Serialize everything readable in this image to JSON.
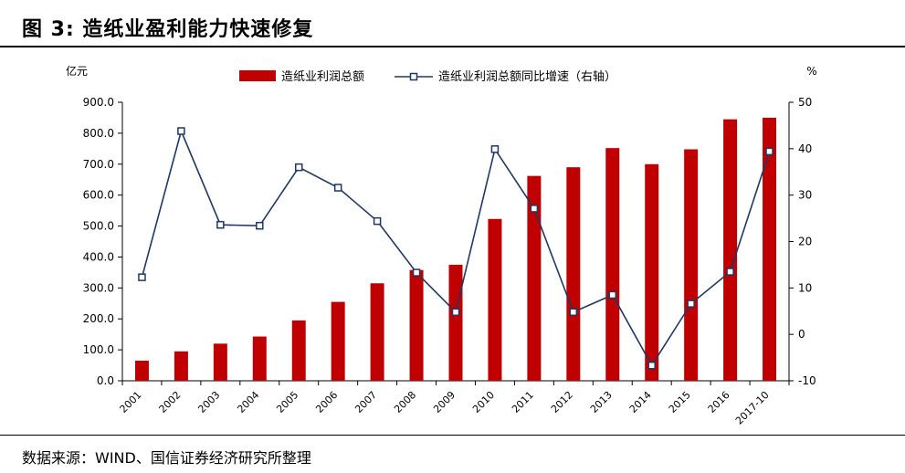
{
  "header": {
    "title": "图 3:  造纸业盈利能力快速修复"
  },
  "footer": {
    "source": "数据来源：WIND、国信证券经济研究所整理"
  },
  "chart_data": {
    "type": "bar+line",
    "categories": [
      "2001",
      "2002",
      "2003",
      "2004",
      "2005",
      "2006",
      "2007",
      "2008",
      "2009",
      "2010",
      "2011",
      "2012",
      "2013",
      "2014",
      "2015",
      "2016",
      "2017-10"
    ],
    "series": [
      {
        "name": "造纸业利润总额",
        "type": "bar",
        "axis": "left",
        "color": "#c00000",
        "values": [
          65,
          95,
          120,
          143,
          195,
          255,
          315,
          358,
          375,
          523,
          662,
          690,
          752,
          700,
          748,
          845,
          850
        ]
      },
      {
        "name": "造纸业利润总额同比增速（右轴）",
        "type": "line",
        "axis": "right",
        "color": "#1f3864",
        "values": [
          12.3,
          43.8,
          23.6,
          23.4,
          36.0,
          31.6,
          24.4,
          13.3,
          4.8,
          39.9,
          27.1,
          4.8,
          8.5,
          -6.7,
          6.6,
          13.5,
          39.4
        ]
      }
    ],
    "y_left": {
      "unit": "亿元",
      "min": 0,
      "max": 900,
      "ticks": [
        "0.0",
        "100.0",
        "200.0",
        "300.0",
        "400.0",
        "500.0",
        "600.0",
        "700.0",
        "800.0",
        "900.0"
      ]
    },
    "y_right": {
      "unit": "%",
      "min": -10,
      "max": 50,
      "ticks": [
        "-10",
        "0",
        "10",
        "20",
        "30",
        "40",
        "50"
      ]
    },
    "legend_position": "top-center",
    "grid": false
  }
}
